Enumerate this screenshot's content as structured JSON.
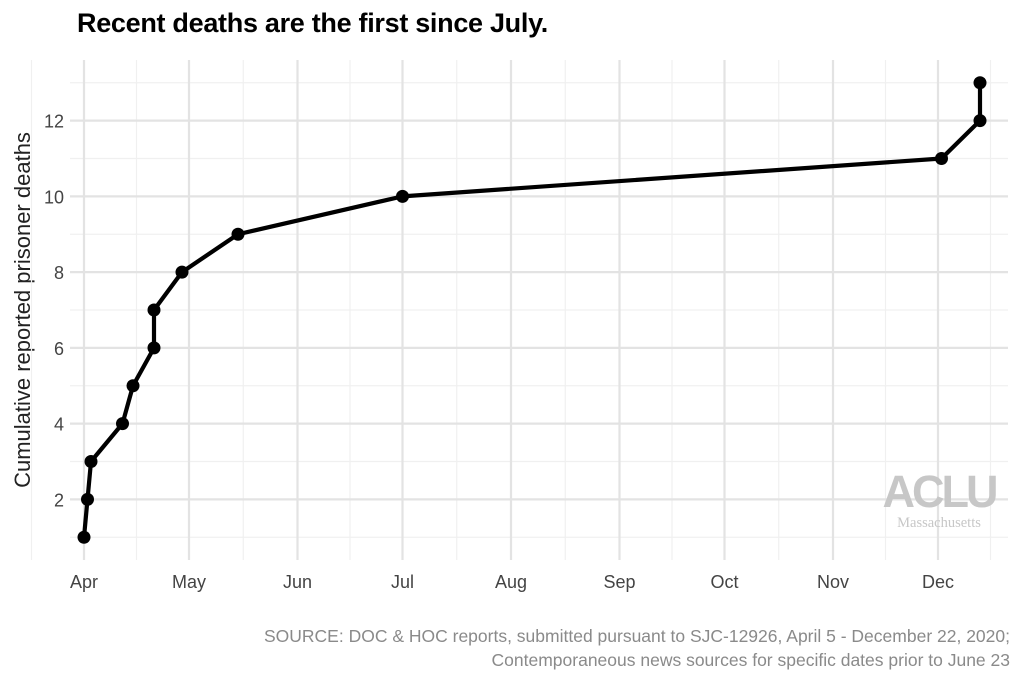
{
  "chart_data": {
    "type": "line",
    "title": "Recent deaths are the first since July.",
    "ylabel": "Cumulative reported prisoner deaths",
    "xlabel": "",
    "x_ticks": [
      "Apr",
      "May",
      "Jun",
      "Jul",
      "Aug",
      "Sep",
      "Oct",
      "Nov",
      "Dec"
    ],
    "x_tick_dates": [
      "2020-04-01",
      "2020-05-01",
      "2020-06-01",
      "2020-07-01",
      "2020-08-01",
      "2020-09-01",
      "2020-10-01",
      "2020-11-01",
      "2020-12-01"
    ],
    "xlim": [
      "2020-03-28",
      "2020-12-21"
    ],
    "y_ticks": [
      2,
      4,
      6,
      8,
      10,
      12
    ],
    "ylim": [
      0.4,
      13.6
    ],
    "grid": true,
    "series": [
      {
        "x": [
          "2020-04-01",
          "2020-04-02",
          "2020-04-03",
          "2020-04-12",
          "2020-04-15",
          "2020-04-21",
          "2020-04-21",
          "2020-04-29",
          "2020-05-15",
          "2020-07-01",
          "2020-12-02",
          "2020-12-13",
          "2020-12-13"
        ],
        "y": [
          1,
          2,
          3,
          4,
          5,
          6,
          7,
          8,
          9,
          10,
          11,
          12,
          13
        ]
      }
    ]
  },
  "source": {
    "line1": "SOURCE: DOC & HOC reports, submitted pursuant to SJC-12926, April 5 - December 22, 2020;",
    "line2": "Contemporaneous news sources for specific dates prior to June 23"
  },
  "logo": {
    "mark": "ACLU",
    "subtitle": "Massachusetts"
  }
}
